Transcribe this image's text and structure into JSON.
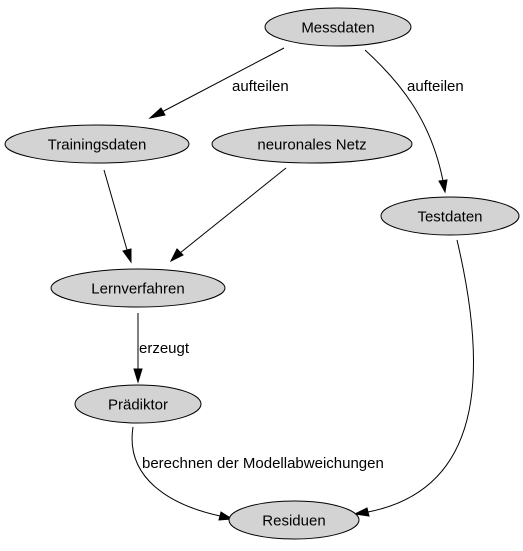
{
  "colors": {
    "node_fill": "#d3d3d3",
    "stroke": "#000000",
    "background": "#ffffff"
  },
  "nodes": {
    "messdaten": "Messdaten",
    "trainingsdaten": "Trainingsdaten",
    "neuronales_netz": "neuronales Netz",
    "testdaten": "Testdaten",
    "lernverfahren": "Lernverfahren",
    "praediktor": "Prädiktor",
    "residuen": "Residuen"
  },
  "edges": {
    "messdaten_to_trainingsdaten": "aufteilen",
    "messdaten_to_testdaten": "aufteilen",
    "lernverfahren_to_praediktor": "erzeugt",
    "praediktor_to_residuen": "berechnen der Modellabweichungen"
  }
}
